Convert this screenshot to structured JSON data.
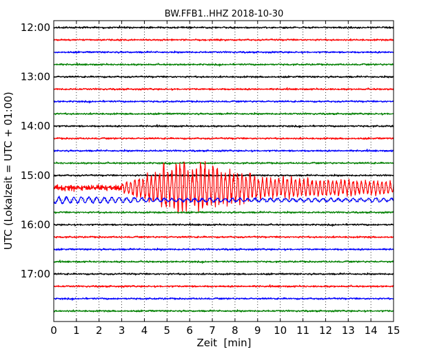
{
  "chart_data": {
    "type": "line",
    "title": "BW.FFB1..HHZ 2018-10-30",
    "xlabel": "Zeit  [min]",
    "ylabel": "UTC (Lokalzeit = UTC + 01:00)",
    "xlim": [
      0,
      15
    ],
    "x_ticks": [
      0,
      1,
      2,
      3,
      4,
      5,
      6,
      7,
      8,
      9,
      10,
      11,
      12,
      13,
      14,
      15
    ],
    "y_tick_labels": [
      "12:00",
      "13:00",
      "14:00",
      "15:00",
      "16:00",
      "17:00"
    ],
    "trace_interval_min": 15,
    "trace_start": "12:00",
    "trace_colors": [
      "#000000",
      "#ff0000",
      "#0000ff",
      "#008000"
    ],
    "grid": true,
    "traces": [
      {
        "start": "12:00",
        "color": "#000000",
        "event": null
      },
      {
        "start": "12:15",
        "color": "#ff0000",
        "event": null
      },
      {
        "start": "12:30",
        "color": "#0000ff",
        "event": null
      },
      {
        "start": "12:45",
        "color": "#008000",
        "event": null
      },
      {
        "start": "13:00",
        "color": "#000000",
        "event": null
      },
      {
        "start": "13:15",
        "color": "#ff0000",
        "event": null
      },
      {
        "start": "13:30",
        "color": "#0000ff",
        "event": null
      },
      {
        "start": "13:45",
        "color": "#008000",
        "event": null
      },
      {
        "start": "14:00",
        "color": "#000000",
        "event": null
      },
      {
        "start": "14:15",
        "color": "#ff0000",
        "event": null
      },
      {
        "start": "14:30",
        "color": "#0000ff",
        "event": null
      },
      {
        "start": "14:45",
        "color": "#008000",
        "event": null
      },
      {
        "start": "15:00",
        "color": "#000000",
        "event": null
      },
      {
        "start": "15:15",
        "color": "#ff0000",
        "event": "earthquake"
      },
      {
        "start": "15:30",
        "color": "#0000ff",
        "event": "coda"
      },
      {
        "start": "15:45",
        "color": "#008000",
        "event": null
      },
      {
        "start": "16:00",
        "color": "#000000",
        "event": null
      },
      {
        "start": "16:15",
        "color": "#ff0000",
        "event": null
      },
      {
        "start": "16:30",
        "color": "#0000ff",
        "event": null
      },
      {
        "start": "16:45",
        "color": "#008000",
        "event": null
      },
      {
        "start": "17:00",
        "color": "#000000",
        "event": null
      },
      {
        "start": "17:15",
        "color": "#ff0000",
        "event": null
      },
      {
        "start": "17:30",
        "color": "#0000ff",
        "event": null
      },
      {
        "start": "17:45",
        "color": "#008000",
        "event": null
      }
    ]
  }
}
